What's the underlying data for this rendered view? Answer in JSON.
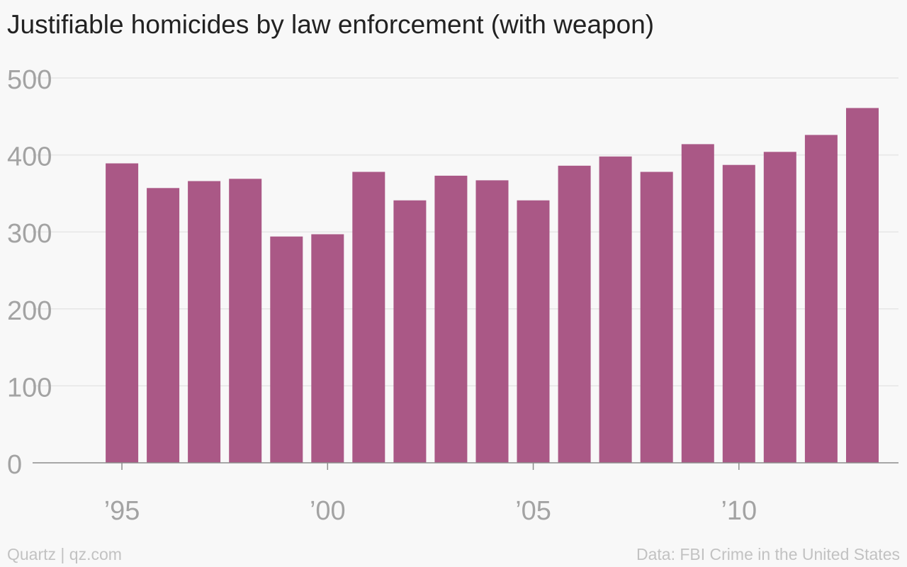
{
  "chart_data": {
    "type": "bar",
    "title": "Justifiable homicides by law enforcement (with weapon)",
    "x": [
      1995,
      1996,
      1997,
      1998,
      1999,
      2000,
      2001,
      2002,
      2003,
      2004,
      2005,
      2006,
      2007,
      2008,
      2009,
      2010,
      2011,
      2012,
      2013
    ],
    "values": [
      389,
      357,
      366,
      369,
      294,
      297,
      378,
      341,
      373,
      367,
      341,
      386,
      398,
      378,
      414,
      387,
      404,
      426,
      461
    ],
    "ylim": [
      0,
      500
    ],
    "yticks": [
      0,
      100,
      200,
      300,
      400,
      500
    ],
    "xticks": [
      1995,
      2000,
      2005,
      2010
    ],
    "xtick_labels": [
      "’95",
      "’00",
      "’05",
      "’10"
    ],
    "xlim": [
      1994,
      2014
    ],
    "bar_color": "#aa5886",
    "grid": true,
    "xlabel": "",
    "ylabel": ""
  },
  "footer": {
    "source_left": "Quartz | qz.com",
    "source_right": "Data: FBI Crime in the United States"
  }
}
